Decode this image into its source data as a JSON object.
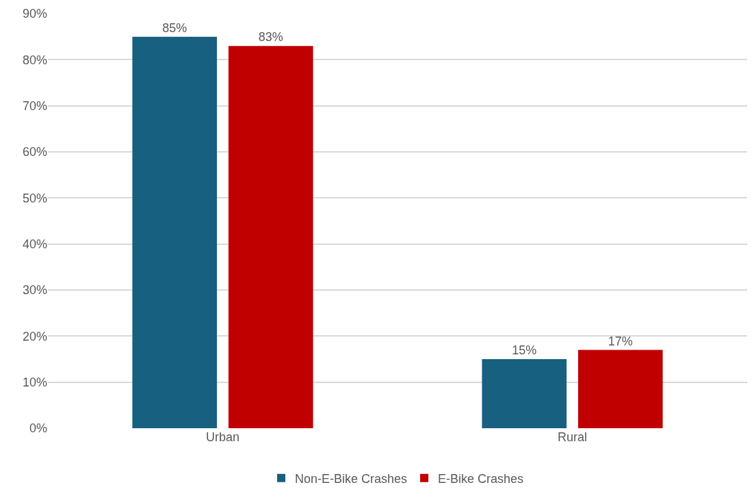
{
  "chart_data": {
    "type": "bar",
    "categories": [
      "Urban",
      "Rural"
    ],
    "series": [
      {
        "name": "Non-E-Bike Crashes",
        "color": "#17607f",
        "values": [
          85,
          15
        ],
        "value_labels": [
          "85%",
          "15%"
        ]
      },
      {
        "name": "E-Bike Crashes",
        "color": "#c00000",
        "values": [
          83,
          17
        ],
        "value_labels": [
          "83%",
          "17%"
        ]
      }
    ],
    "ylim": [
      0,
      90
    ],
    "yticks": [
      {
        "value": 0,
        "label": "0%"
      },
      {
        "value": 10,
        "label": "10%"
      },
      {
        "value": 20,
        "label": "20%"
      },
      {
        "value": 30,
        "label": "30%"
      },
      {
        "value": 40,
        "label": "40%"
      },
      {
        "value": 50,
        "label": "50%"
      },
      {
        "value": 60,
        "label": "60%"
      },
      {
        "value": 70,
        "label": "70%"
      },
      {
        "value": 80,
        "label": "80%"
      },
      {
        "value": 90,
        "label": "90%"
      }
    ],
    "grid": "y",
    "legend": "bottom"
  }
}
